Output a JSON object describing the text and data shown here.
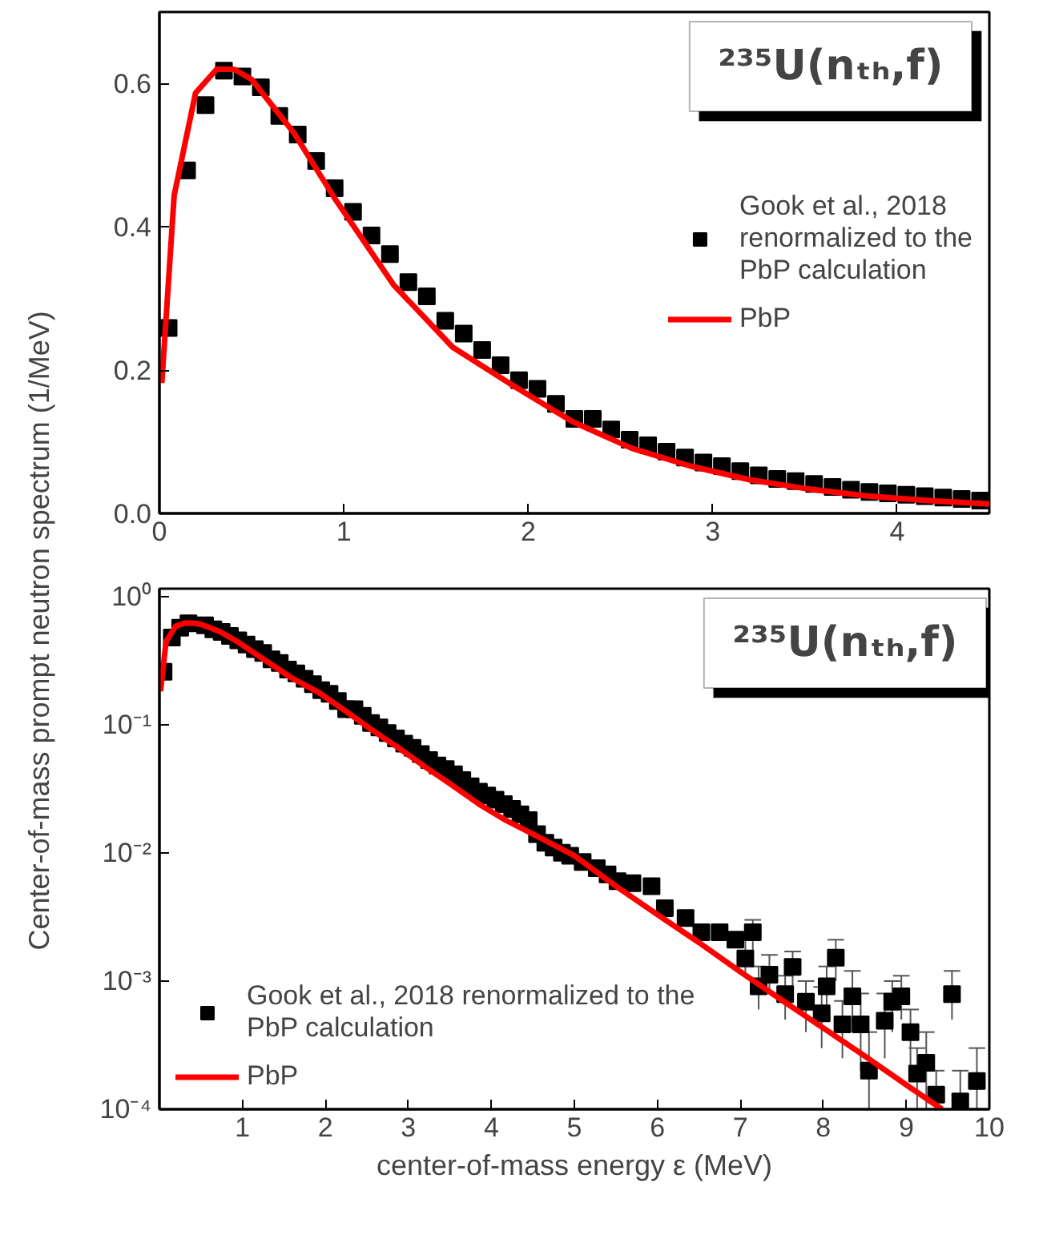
{
  "chart_data": [
    {
      "type": "scatter",
      "title": "²³⁵U(nₜₕ,f)",
      "ylabel": "Center-of-mass prompt neutron spectrum (1/MeV)",
      "xlim": [
        0,
        4.5
      ],
      "ylim": [
        0,
        0.7
      ],
      "xticks": [
        {
          "value": 0,
          "label": "0"
        },
        1,
        2,
        3,
        4
      ],
      "yticks": [
        {
          "value": 0,
          "label": "0.0"
        },
        0.2,
        0.4,
        0.6
      ],
      "grid": false,
      "legend": "right",
      "series": [
        {
          "name": "Gook et al., 2018 renormalized to the PbP calculation",
          "marker": "square",
          "color": "#000000",
          "x": [
            0.05,
            0.15,
            0.25,
            0.35,
            0.45,
            0.55,
            0.65,
            0.75,
            0.85,
            0.95,
            1.05,
            1.15,
            1.25,
            1.35,
            1.45,
            1.55,
            1.65,
            1.75,
            1.85,
            1.95,
            2.05,
            2.15,
            2.25,
            2.35,
            2.45,
            2.55,
            2.65,
            2.75,
            2.85,
            2.95,
            3.05,
            3.15,
            3.25,
            3.35,
            3.45,
            3.55,
            3.65,
            3.75,
            3.85,
            3.95,
            4.05,
            4.15,
            4.25,
            4.35,
            4.45
          ],
          "values": [
            0.259,
            0.479,
            0.57,
            0.618,
            0.61,
            0.595,
            0.555,
            0.529,
            0.492,
            0.454,
            0.421,
            0.388,
            0.362,
            0.323,
            0.303,
            0.269,
            0.251,
            0.228,
            0.207,
            0.186,
            0.174,
            0.153,
            0.132,
            0.132,
            0.117,
            0.103,
            0.095,
            0.086,
            0.078,
            0.071,
            0.066,
            0.059,
            0.053,
            0.048,
            0.045,
            0.041,
            0.037,
            0.033,
            0.03,
            0.028,
            0.026,
            0.024,
            0.022,
            0.02,
            0.018
          ]
        },
        {
          "name": "PbP",
          "type": "line",
          "color": "#ff0000",
          "x": [
            0.013,
            0.08,
            0.196,
            0.31,
            0.405,
            0.5,
            0.61,
            0.73,
            0.95,
            1.27,
            1.59,
            1.92,
            2.24,
            2.56,
            2.88,
            3.2,
            3.52,
            3.85,
            4.17,
            4.5
          ],
          "values": [
            0.182,
            0.444,
            0.587,
            0.62,
            0.62,
            0.606,
            0.57,
            0.531,
            0.44,
            0.319,
            0.232,
            0.178,
            0.128,
            0.091,
            0.066,
            0.047,
            0.034,
            0.024,
            0.018,
            0.013
          ]
        }
      ]
    },
    {
      "type": "scatter",
      "title": "²³⁵U(nₜₕ,f)",
      "xlabel": "center-of-mass energy ε (MeV)",
      "xlim": [
        0,
        10
      ],
      "ylim": [
        0.0001,
        1.15
      ],
      "log": "y",
      "xticks": [
        {
          "value": 0,
          "label": null
        },
        1,
        2,
        3,
        4,
        5,
        6,
        7,
        8,
        9,
        10
      ],
      "yticks": [
        {
          "value": 0.0001,
          "label": "10⁻⁴"
        },
        {
          "value": 0.001,
          "label": "10⁻³"
        },
        {
          "value": 0.01,
          "label": "10⁻²"
        },
        {
          "value": 0.1,
          "label": "10⁻¹"
        },
        {
          "value": 1,
          "label": "10⁰"
        }
      ],
      "grid": false,
      "legend": "bottom left",
      "series": [
        {
          "name": "Gook et al., 2018 renormalized to the PbP calculation",
          "marker": "square",
          "color": "#000000",
          "x": [
            0.05,
            0.15,
            0.25,
            0.35,
            0.45,
            0.55,
            0.65,
            0.75,
            0.85,
            0.95,
            1.05,
            1.15,
            1.25,
            1.35,
            1.45,
            1.55,
            1.65,
            1.75,
            1.85,
            1.95,
            2.05,
            2.15,
            2.25,
            2.35,
            2.45,
            2.55,
            2.65,
            2.75,
            2.85,
            2.95,
            3.05,
            3.15,
            3.25,
            3.35,
            3.45,
            3.55,
            3.65,
            3.75,
            3.85,
            3.95,
            4.05,
            4.15,
            4.25,
            4.35,
            4.45,
            4.55,
            4.65,
            4.75,
            4.85,
            4.95,
            5.1,
            5.27,
            5.4,
            5.52,
            5.7,
            5.93,
            6.09,
            6.34,
            6.53,
            6.75,
            6.94,
            7.06,
            7.15,
            7.22,
            7.35,
            7.54,
            7.63,
            7.79,
            7.98,
            8.04,
            8.15,
            8.23,
            8.35,
            8.45,
            8.55,
            8.74,
            8.83,
            8.94,
            9.05,
            9.13,
            9.24,
            9.36,
            9.55,
            9.65,
            9.85
          ],
          "values": [
            0.259,
            0.479,
            0.57,
            0.618,
            null,
            0.595,
            0.555,
            0.529,
            0.492,
            0.454,
            0.421,
            0.388,
            0.362,
            0.323,
            0.303,
            0.269,
            0.251,
            0.228,
            0.207,
            0.186,
            0.174,
            0.153,
            0.132,
            0.132,
            0.117,
            0.103,
            0.095,
            0.086,
            0.078,
            0.071,
            0.066,
            0.059,
            0.053,
            0.048,
            0.045,
            0.041,
            0.037,
            0.033,
            0.03,
            0.028,
            0.026,
            0.024,
            0.022,
            0.02,
            0.018,
            0.014,
            0.012,
            0.011,
            0.01,
            0.0095,
            0.0085,
            0.0076,
            0.0068,
            0.006,
            0.0058,
            0.0055,
            0.0037,
            0.0031,
            0.0024,
            0.0024,
            0.0021,
            0.0015,
            0.0024,
            0.00091,
            0.00112,
            0.00079,
            0.00129,
            0.00069,
            0.00056,
            0.00091,
            0.00152,
            0.00046,
            0.00076,
            0.00046,
            0.0002,
            0.00049,
            0.00069,
            0.00076,
            0.0004,
            0.00019,
            0.00023,
            0.00013,
            0.00079,
            0.000115,
            0.000166
          ],
          "errors": [
            null,
            null,
            null,
            null,
            null,
            null,
            null,
            null,
            null,
            null,
            null,
            null,
            null,
            null,
            null,
            null,
            null,
            null,
            null,
            null,
            null,
            null,
            null,
            null,
            null,
            null,
            null,
            null,
            null,
            null,
            null,
            null,
            null,
            null,
            null,
            null,
            null,
            null,
            null,
            null,
            null,
            null,
            null,
            null,
            null,
            null,
            null,
            null,
            null,
            null,
            null,
            null,
            null,
            null,
            null,
            null,
            null,
            null,
            null,
            null,
            null,
            [
              0.0011,
              0.0021
            ],
            [
              0.0017,
              0.003
            ],
            [
              0.0006,
              0.0013
            ],
            [
              0.0008,
              0.0016
            ],
            [
              0.0005,
              0.0011
            ],
            [
              0.0009,
              0.0017
            ],
            [
              0.0004,
              0.001
            ],
            [
              0.0003,
              0.0009
            ],
            [
              0.0006,
              0.0013
            ],
            [
              0.001,
              0.0021
            ],
            [
              0.00025,
              0.0007
            ],
            [
              0.0004,
              0.0012
            ],
            [
              0.0002,
              0.0008
            ],
            [
              0.0001,
              0.0004
            ],
            [
              0.00025,
              0.0008
            ],
            [
              0.0004,
              0.001
            ],
            [
              0.0005,
              0.0011
            ],
            [
              0.0002,
              0.0006
            ],
            [
              0.0001,
              0.0003
            ],
            [
              0.0001,
              0.0004
            ],
            [
              0.0001,
              0.0002
            ],
            [
              0.0005,
              0.0012
            ],
            [
              0.0001,
              0.0002
            ],
            [
              0.0001,
              0.0003
            ]
          ]
        },
        {
          "name": "PbP",
          "type": "line",
          "color": "#ff0000",
          "x": [
            0.013,
            0.08,
            0.196,
            0.31,
            0.405,
            0.5,
            0.61,
            0.73,
            0.95,
            1.27,
            1.59,
            1.92,
            2.24,
            2.56,
            2.88,
            3.2,
            3.52,
            3.85,
            4.17,
            4.5,
            5.0,
            5.5,
            6.0,
            6.5,
            7.0,
            7.5,
            8.0,
            8.5,
            9.0,
            9.43
          ],
          "values": [
            0.182,
            0.444,
            0.587,
            0.62,
            0.62,
            0.606,
            0.57,
            0.531,
            0.44,
            0.319,
            0.232,
            0.178,
            0.128,
            0.091,
            0.066,
            0.047,
            0.034,
            0.024,
            0.018,
            0.014,
            0.0095,
            0.0055,
            0.0033,
            0.002,
            0.00118,
            0.00071,
            0.00043,
            0.00026,
            0.000155,
            0.0001
          ]
        }
      ]
    }
  ]
}
